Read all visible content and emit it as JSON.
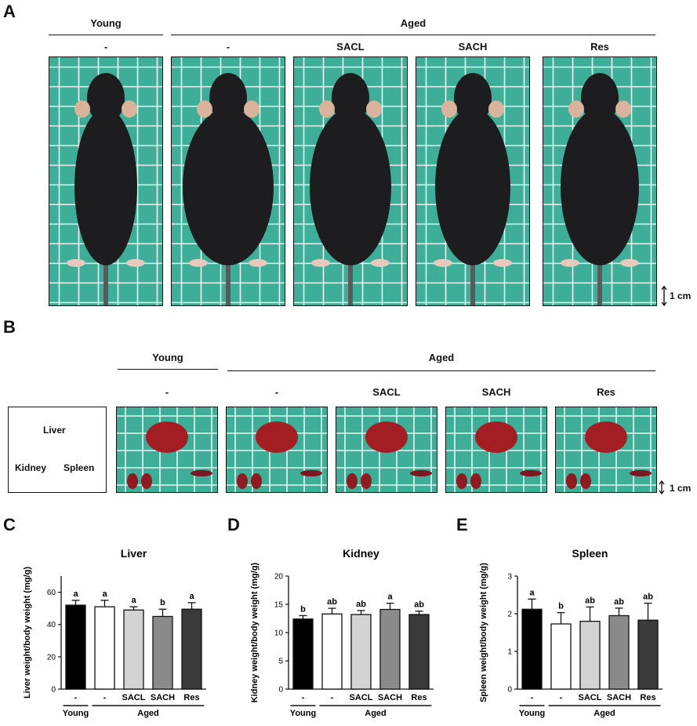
{
  "panels": {
    "a": "A",
    "b": "B",
    "c": "C",
    "d": "D",
    "e": "E"
  },
  "groups": {
    "young": "Young",
    "aged": "Aged"
  },
  "treatments": [
    "-",
    "-",
    "SACL",
    "SACH",
    "Res"
  ],
  "scale_label": "1 cm",
  "organs_legend": {
    "liver": "Liver",
    "kidney": "Kidney",
    "spleen": "Spleen"
  },
  "colors": {
    "grid_bg": "#3fae98",
    "grid_line": "#e6f6f1"
  },
  "chart_data": [
    {
      "type": "bar",
      "title": "Liver",
      "ylabel": "Liver weight/body weight (mg/g)",
      "categories": [
        "-",
        "-",
        "SACL",
        "SACH",
        "Res"
      ],
      "group_labels": [
        "Young",
        "Aged"
      ],
      "values": [
        52,
        51,
        49,
        45,
        49.5
      ],
      "errors": [
        3,
        4,
        2,
        4.5,
        4
      ],
      "letters": [
        "a",
        "a",
        "a",
        "b",
        "a"
      ],
      "ylim": [
        0,
        70
      ],
      "yticks": [
        0,
        20,
        40,
        60
      ],
      "bar_colors": [
        "#000000",
        "#ffffff",
        "#d3d3d3",
        "#8a8a8a",
        "#3a3a3a"
      ]
    },
    {
      "type": "bar",
      "title": "Kidney",
      "ylabel": "Kidney weight/body weight (mg/g)",
      "categories": [
        "-",
        "-",
        "SACL",
        "SACH",
        "Res"
      ],
      "group_labels": [
        "Young",
        "Aged"
      ],
      "values": [
        12.4,
        13.3,
        13.2,
        14.1,
        13.2
      ],
      "errors": [
        0.6,
        1.0,
        0.7,
        1.1,
        0.6
      ],
      "letters": [
        "b",
        "ab",
        "ab",
        "a",
        "ab"
      ],
      "ylim": [
        0,
        20
      ],
      "yticks": [
        0,
        5,
        10,
        15,
        20
      ],
      "bar_colors": [
        "#000000",
        "#ffffff",
        "#d3d3d3",
        "#8a8a8a",
        "#3a3a3a"
      ]
    },
    {
      "type": "bar",
      "title": "Spleen",
      "ylabel": "Spleen weight/body weight (mg/g)",
      "categories": [
        "-",
        "-",
        "SACL",
        "SACH",
        "Res"
      ],
      "group_labels": [
        "Young",
        "Aged"
      ],
      "values": [
        2.12,
        1.73,
        1.8,
        1.95,
        1.83
      ],
      "errors": [
        0.27,
        0.3,
        0.38,
        0.2,
        0.45
      ],
      "letters": [
        "a",
        "b",
        "ab",
        "ab",
        "ab"
      ],
      "ylim": [
        0,
        3
      ],
      "yticks": [
        0,
        1,
        2,
        3
      ],
      "bar_colors": [
        "#000000",
        "#ffffff",
        "#d3d3d3",
        "#8a8a8a",
        "#3a3a3a"
      ]
    }
  ]
}
